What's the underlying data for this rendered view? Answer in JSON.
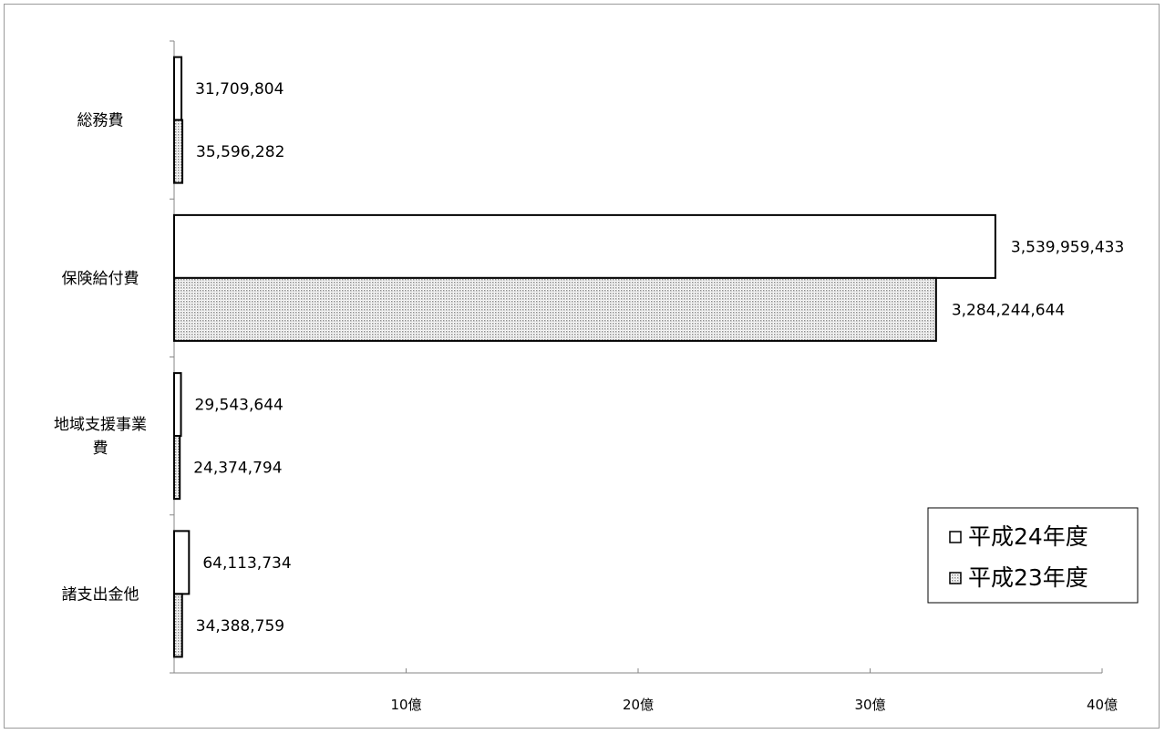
{
  "chart_data": {
    "type": "bar",
    "orientation": "horizontal",
    "categories": [
      "総務費",
      "保険給付費",
      "地域支援事業費",
      "諸支出金他"
    ],
    "category_display": [
      [
        "総務費"
      ],
      [
        "保険給付費"
      ],
      [
        "地域支援事業",
        "費"
      ],
      [
        "諸支出金他"
      ]
    ],
    "series": [
      {
        "name": "平成24年度",
        "values": [
          31709804,
          3539959433,
          29543644,
          64113734
        ],
        "labels": [
          "31,709,804",
          "3,539,959,433",
          "29,543,644",
          "64,113,734"
        ],
        "fill": "#ffffff"
      },
      {
        "name": "平成23年度",
        "values": [
          35596282,
          3284244644,
          24374794,
          34388759
        ],
        "labels": [
          "35,596,282",
          "3,284,244,644",
          "24,374,794",
          "34,388,759"
        ],
        "fill": "dotted"
      }
    ],
    "xlim": [
      0,
      4000000000
    ],
    "xticks": [
      1000000000,
      2000000000,
      3000000000,
      4000000000
    ],
    "xtick_labels": [
      "10億",
      "20億",
      "30億",
      "40億"
    ],
    "legend": {
      "position": "bottom-right",
      "entries": [
        {
          "marker": "□",
          "label": "平成24年度"
        },
        {
          "marker": "▩",
          "label": "平成23年度"
        }
      ]
    },
    "grid": false,
    "title": "",
    "xlabel": "",
    "ylabel": ""
  },
  "colors": {
    "bar_stroke": "#000000",
    "dot": "#8c8c8c",
    "axis": "#868686"
  }
}
